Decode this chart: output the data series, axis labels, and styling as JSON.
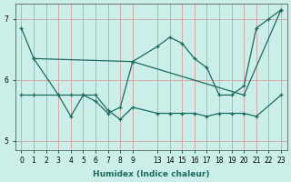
{
  "xlabel": "Humidex (Indice chaleur)",
  "bg_color": "#cceee8",
  "line_color": "#1a6b60",
  "grid_color": "#d4a0a0",
  "ylim": [
    4.85,
    7.25
  ],
  "line1_x": [
    0,
    1,
    3,
    4,
    5,
    6,
    7,
    8,
    9,
    13,
    14,
    15,
    16,
    17,
    18,
    19,
    20,
    21,
    22,
    23
  ],
  "line1_y": [
    6.85,
    6.35,
    5.75,
    5.4,
    5.75,
    5.65,
    5.45,
    5.55,
    6.3,
    6.55,
    6.7,
    6.6,
    6.35,
    6.2,
    5.75,
    5.75,
    5.9,
    6.85,
    7.0,
    7.15
  ],
  "line2_x": [
    0,
    1,
    3,
    4,
    5,
    6,
    7,
    8,
    9,
    13,
    14,
    15,
    16,
    17,
    18,
    19,
    20,
    21,
    23
  ],
  "line2_y": [
    5.75,
    5.75,
    5.75,
    5.75,
    5.75,
    5.75,
    5.5,
    5.35,
    5.55,
    5.45,
    5.45,
    5.45,
    5.45,
    5.4,
    5.45,
    5.45,
    5.45,
    5.4,
    5.75
  ],
  "line3_x": [
    1,
    9,
    20,
    23
  ],
  "line3_y": [
    6.35,
    6.3,
    5.75,
    7.15
  ],
  "x_labels_0to9": [
    "0",
    "1",
    "2",
    "3",
    "4",
    "5",
    "6",
    "7",
    "8",
    "9"
  ],
  "x_labels_13to23": [
    "13",
    "14",
    "15",
    "16",
    "17",
    "18",
    "19",
    "20",
    "21",
    "22",
    "23"
  ],
  "figsize": [
    3.2,
    2.0
  ],
  "dpi": 100
}
